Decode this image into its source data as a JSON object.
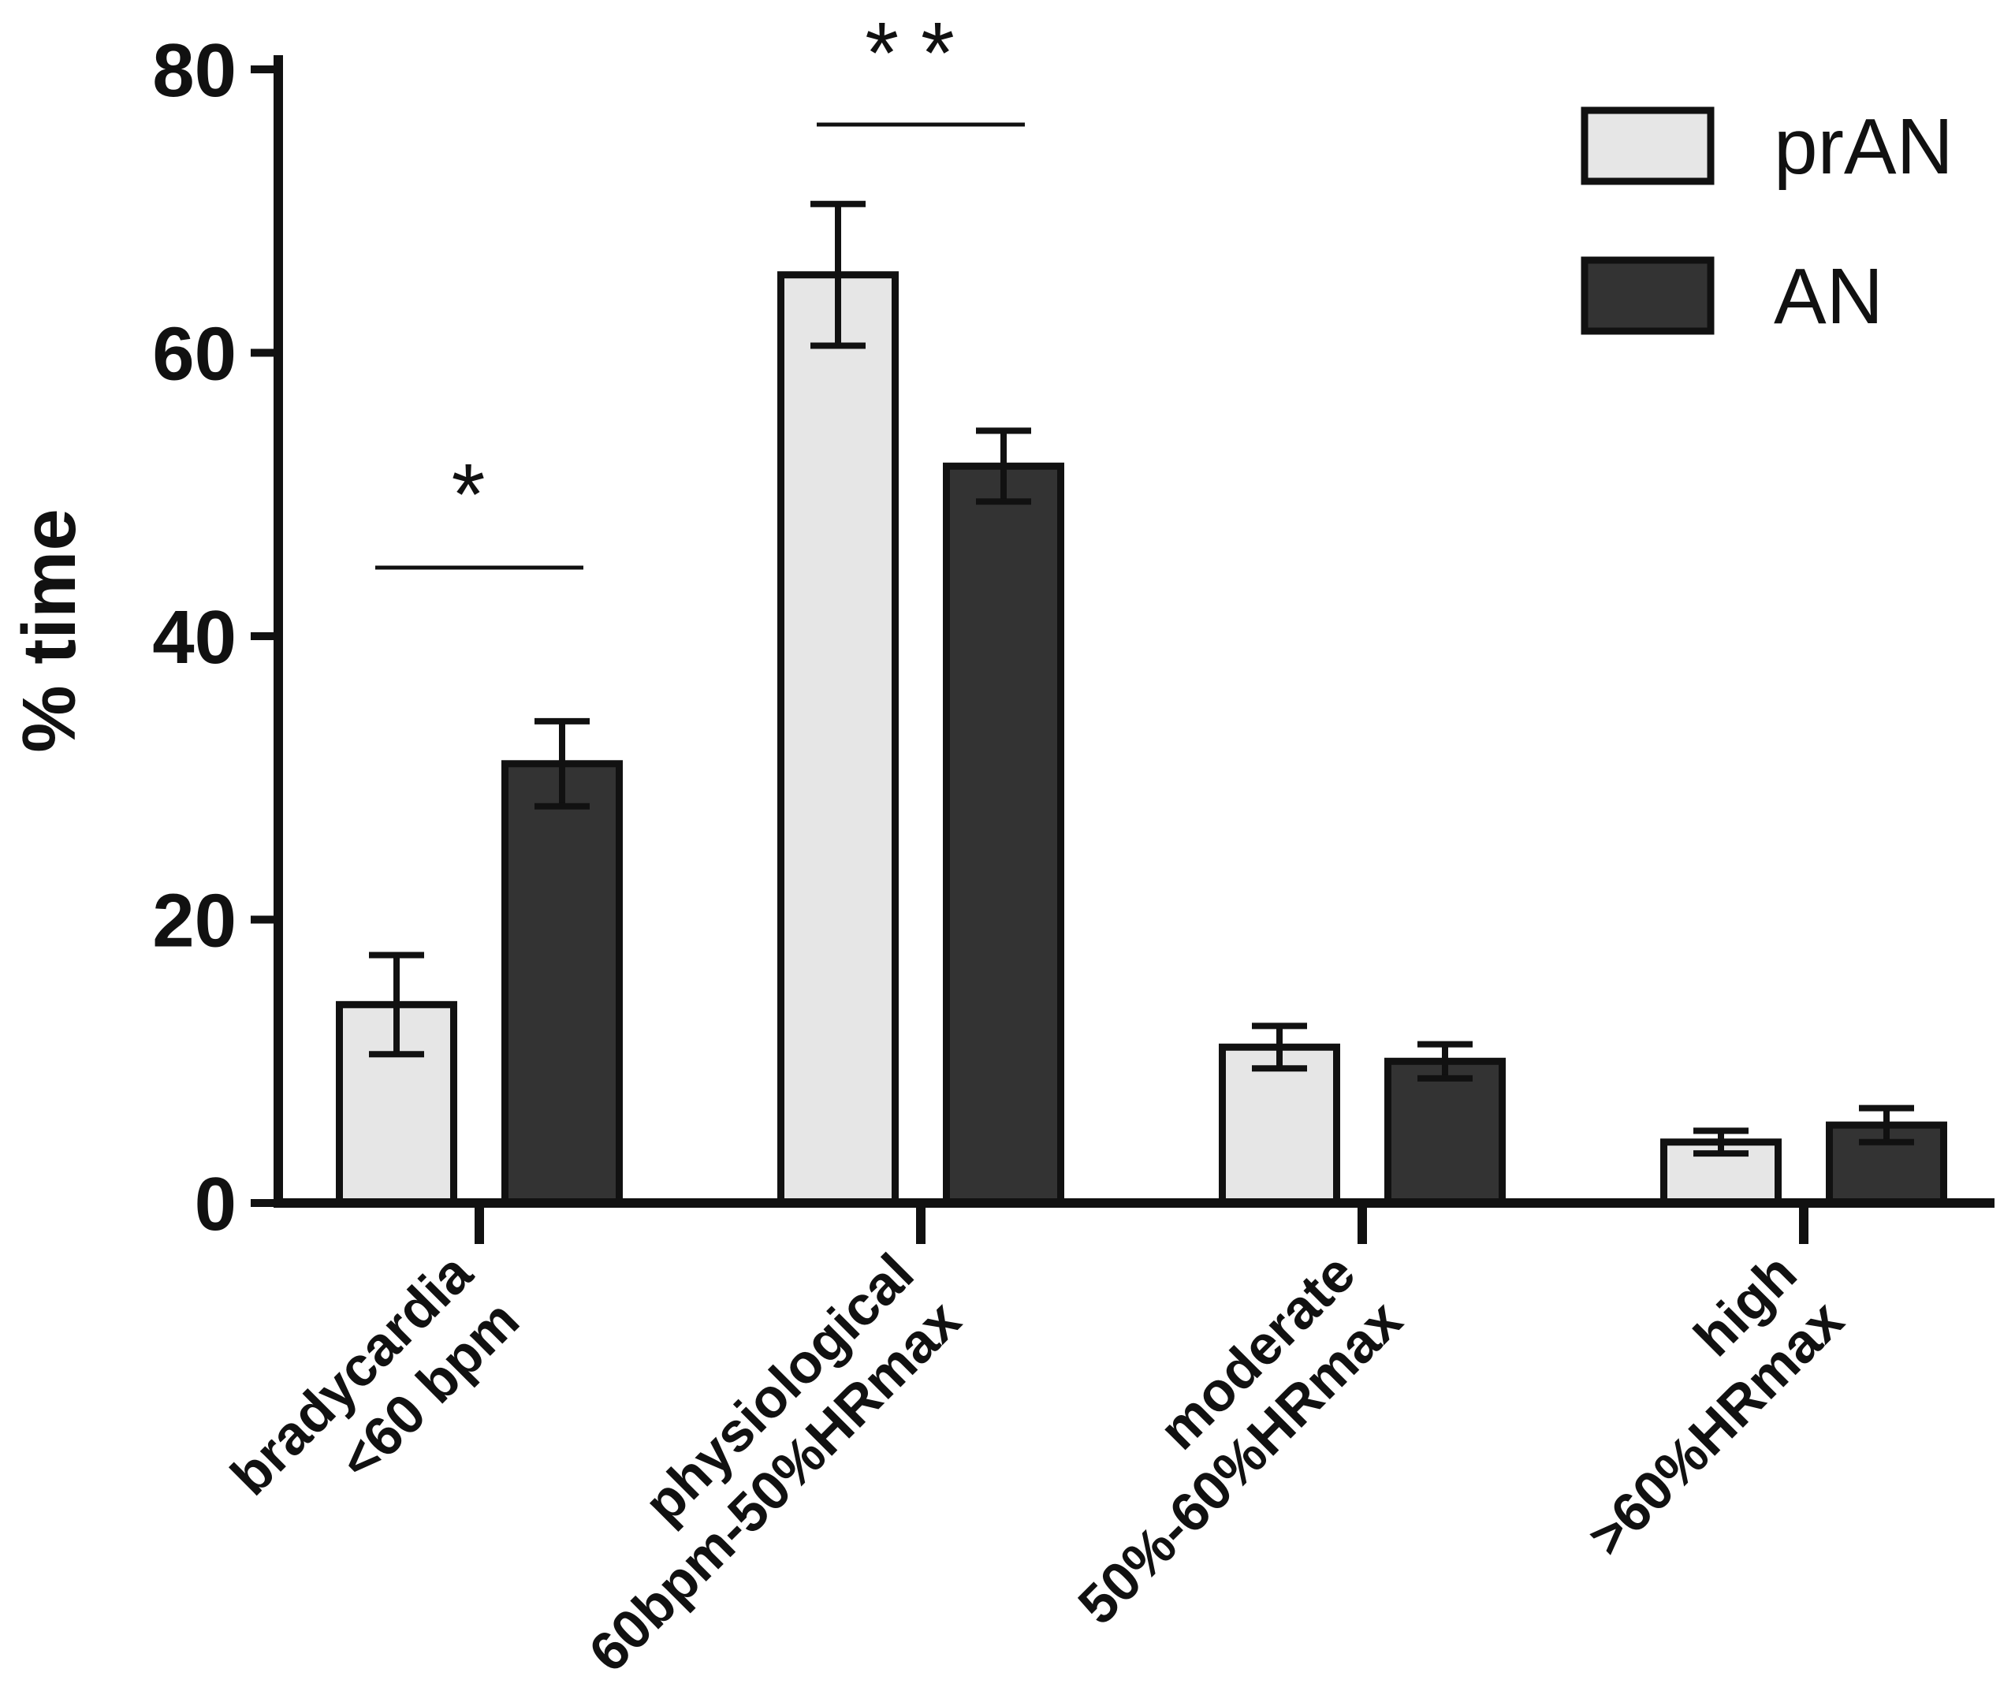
{
  "chart_data": {
    "type": "bar",
    "title": "",
    "xlabel": "",
    "ylabel": "% time",
    "ylim": [
      0,
      80
    ],
    "yticks": [
      0,
      20,
      40,
      60,
      80
    ],
    "categories": [
      [
        "bradycardia",
        "<60 bpm"
      ],
      [
        "physiological",
        "60bpm-50%HRmax"
      ],
      [
        "moderate",
        "50%-60%HRmax"
      ],
      [
        "high",
        ">60%HRmax"
      ]
    ],
    "series": [
      {
        "name": "prAN",
        "color": "#e6e6e6",
        "values": [
          14,
          65.5,
          11,
          4.3
        ],
        "errors": [
          3.5,
          5,
          1.5,
          0.8
        ]
      },
      {
        "name": "AN",
        "color": "#333333",
        "values": [
          31,
          52,
          10,
          5.5
        ],
        "errors": [
          3,
          2.5,
          1.2,
          1.2
        ]
      }
    ],
    "significance": [
      {
        "category_index": 0,
        "label": "*"
      },
      {
        "category_index": 1,
        "label": "**"
      }
    ],
    "legend_position": "top-right"
  }
}
